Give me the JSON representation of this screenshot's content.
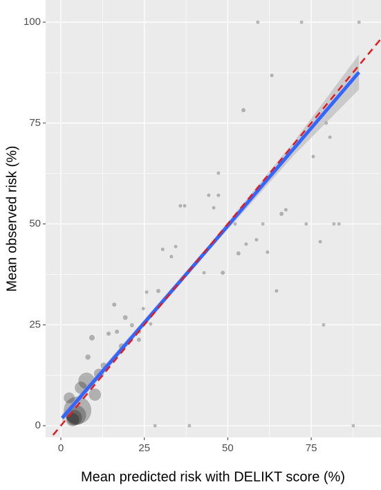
{
  "chart_data": {
    "type": "scatter",
    "x_label": "Mean predicted risk with DELIKT score (%)",
    "y_label": "Mean observed risk (%)",
    "xlim": [
      -4.56,
      95.9
    ],
    "ylim": [
      -2.9,
      105.5
    ],
    "xticks": [
      0,
      25,
      50,
      75
    ],
    "yticks": [
      0,
      25,
      50,
      75,
      100
    ],
    "xminor": [
      12.5,
      37.5,
      62.5,
      87.5
    ],
    "yminor": [
      12.5,
      37.5,
      62.5,
      87.5
    ],
    "grid": true,
    "point_color": "#000000",
    "series": [
      {
        "x": [
          59,
          72.1,
          89.3,
          63.2,
          54.7,
          79.5,
          80.6,
          75.6,
          47.2,
          44.3,
          47.2,
          45.8,
          35.8,
          37.1,
          67.4,
          66.1,
          52.2,
          60.5,
          73.5,
          81.8,
          83.3,
          58.6,
          77.7,
          55.5,
          30.5,
          34.4,
          33.1,
          53.2,
          61.9,
          48.5,
          42.9,
          64.6,
          29.2,
          25.7,
          24.7,
          16,
          26.9,
          78.7,
          19.3,
          21.3,
          23.4,
          14.3,
          16.8,
          23.4,
          18.2,
          9.3,
          8.1,
          12.8,
          28.2,
          38.5,
          87.6,
          5,
          4.6,
          4,
          7.7,
          10.2,
          6,
          11.4,
          2.5,
          3.5
        ],
        "y": [
          100,
          100,
          100,
          86.8,
          78.2,
          75,
          71.5,
          66.7,
          62.6,
          57.1,
          57.1,
          54,
          54.5,
          54.5,
          53.5,
          52.5,
          50,
          50,
          50,
          50,
          50,
          46.1,
          45.6,
          45,
          43.7,
          44.4,
          41.9,
          42.7,
          43,
          37.9,
          37.9,
          33.4,
          33.4,
          33.1,
          29,
          30,
          25.2,
          25,
          26.8,
          24.9,
          23.3,
          22.8,
          23.3,
          21.3,
          19.7,
          21.8,
          17,
          14.9,
          0,
          0,
          0,
          3.8,
          2.6,
          2,
          11.1,
          7.7,
          9.4,
          12.9,
          6.9,
          1.5
        ],
        "sizes": [
          1,
          1,
          1,
          1,
          1.5,
          1,
          1,
          1,
          1,
          1,
          1,
          1,
          1,
          1,
          1,
          1.5,
          1,
          1,
          1,
          1,
          1,
          1,
          1,
          1,
          1,
          1,
          1,
          1.5,
          1,
          1.5,
          1,
          1,
          1.5,
          1,
          1,
          1.5,
          1,
          1,
          2,
          1.5,
          1.5,
          1.5,
          1.5,
          1.5,
          3,
          3,
          2.5,
          3.5,
          1,
          1,
          1,
          80,
          40,
          25,
          28,
          15,
          15,
          10,
          12,
          18
        ]
      }
    ],
    "fit": {
      "color": "#3366ff",
      "band_color": "#999999",
      "x": [
        0.4,
        45,
        70,
        89.3
      ],
      "y": [
        1.9,
        44.7,
        68.9,
        87.6
      ],
      "lower": [
        0.9,
        44.0,
        67.2,
        83.3
      ],
      "upper": [
        2.9,
        45.4,
        70.6,
        92
      ]
    },
    "reference_line": {
      "slope": 1,
      "intercept": 0,
      "color": "#e41a1c"
    }
  }
}
